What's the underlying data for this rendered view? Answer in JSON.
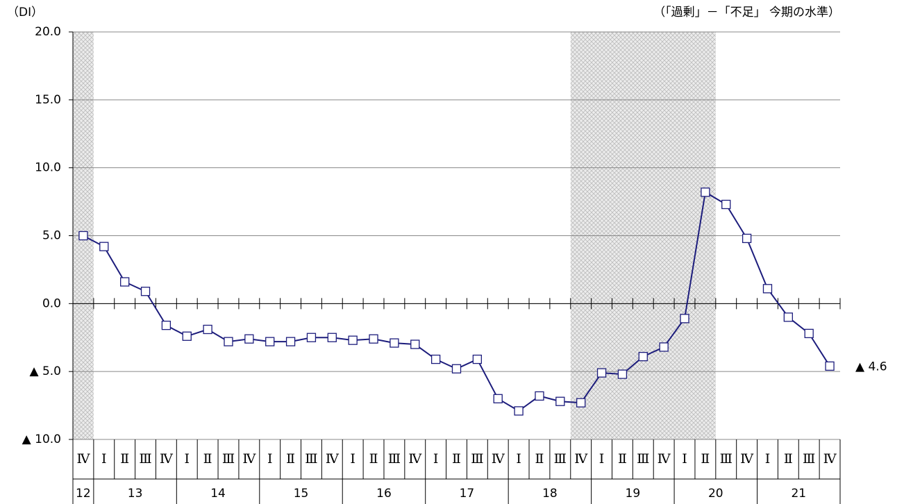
{
  "chart_data": {
    "type": "line",
    "unit_label": "（DI）",
    "subtitle": "（「過剰」－「不足」 今期の水準）",
    "categories": [
      "Ⅳ",
      "Ⅰ",
      "Ⅱ",
      "Ⅲ",
      "Ⅳ",
      "Ⅰ",
      "Ⅱ",
      "Ⅲ",
      "Ⅳ",
      "Ⅰ",
      "Ⅱ",
      "Ⅲ",
      "Ⅳ",
      "Ⅰ",
      "Ⅱ",
      "Ⅲ",
      "Ⅳ",
      "Ⅰ",
      "Ⅱ",
      "Ⅲ",
      "Ⅳ",
      "Ⅰ",
      "Ⅱ",
      "Ⅲ",
      "Ⅳ",
      "Ⅰ",
      "Ⅱ",
      "Ⅲ",
      "Ⅳ",
      "Ⅰ",
      "Ⅱ",
      "Ⅲ",
      "Ⅳ",
      "Ⅰ",
      "Ⅱ",
      "Ⅲ",
      "Ⅳ"
    ],
    "years": [
      {
        "label": "12",
        "span": 1
      },
      {
        "label": "13",
        "span": 4
      },
      {
        "label": "14",
        "span": 4
      },
      {
        "label": "15",
        "span": 4
      },
      {
        "label": "16",
        "span": 4
      },
      {
        "label": "17",
        "span": 4
      },
      {
        "label": "18",
        "span": 4
      },
      {
        "label": "19",
        "span": 4
      },
      {
        "label": "20",
        "span": 4
      },
      {
        "label": "21",
        "span": 4
      }
    ],
    "series": [
      {
        "name": "DI",
        "color": "#1c1c7c",
        "values": [
          5.0,
          4.2,
          1.6,
          0.9,
          -1.6,
          -2.4,
          -1.9,
          -2.8,
          -2.6,
          -2.8,
          -2.8,
          -2.5,
          -2.5,
          -2.7,
          -2.6,
          -2.9,
          -3.0,
          -4.1,
          -4.8,
          -4.1,
          -7.0,
          -7.9,
          -6.8,
          -7.2,
          -7.3,
          -5.1,
          -5.2,
          -3.9,
          -3.2,
          -1.1,
          8.2,
          7.3,
          4.8,
          1.1,
          -1.0,
          -2.2,
          -4.6
        ],
        "value_labels": [
          null,
          null,
          null,
          null,
          null,
          null,
          null,
          null,
          null,
          null,
          null,
          null,
          null,
          null,
          null,
          null,
          null,
          null,
          null,
          null,
          null,
          null,
          null,
          null,
          null,
          null,
          null,
          null,
          null,
          null,
          null,
          null,
          null,
          null,
          null,
          null,
          "▲ 4.6"
        ]
      }
    ],
    "shaded_ranges": [
      [
        -0.5,
        0.5
      ],
      [
        23.5,
        30.5
      ]
    ],
    "ylim": [
      -10,
      20
    ],
    "yticks": [
      {
        "value": -10,
        "label": "▲ 10.0"
      },
      {
        "value": -5,
        "label": "▲ 5.0"
      },
      {
        "value": 0,
        "label": "0.0"
      },
      {
        "value": 5,
        "label": "5.0"
      },
      {
        "value": 10,
        "label": "10.0"
      },
      {
        "value": 15,
        "label": "15.0"
      },
      {
        "value": 20,
        "label": "20.0"
      }
    ],
    "grid": true
  }
}
